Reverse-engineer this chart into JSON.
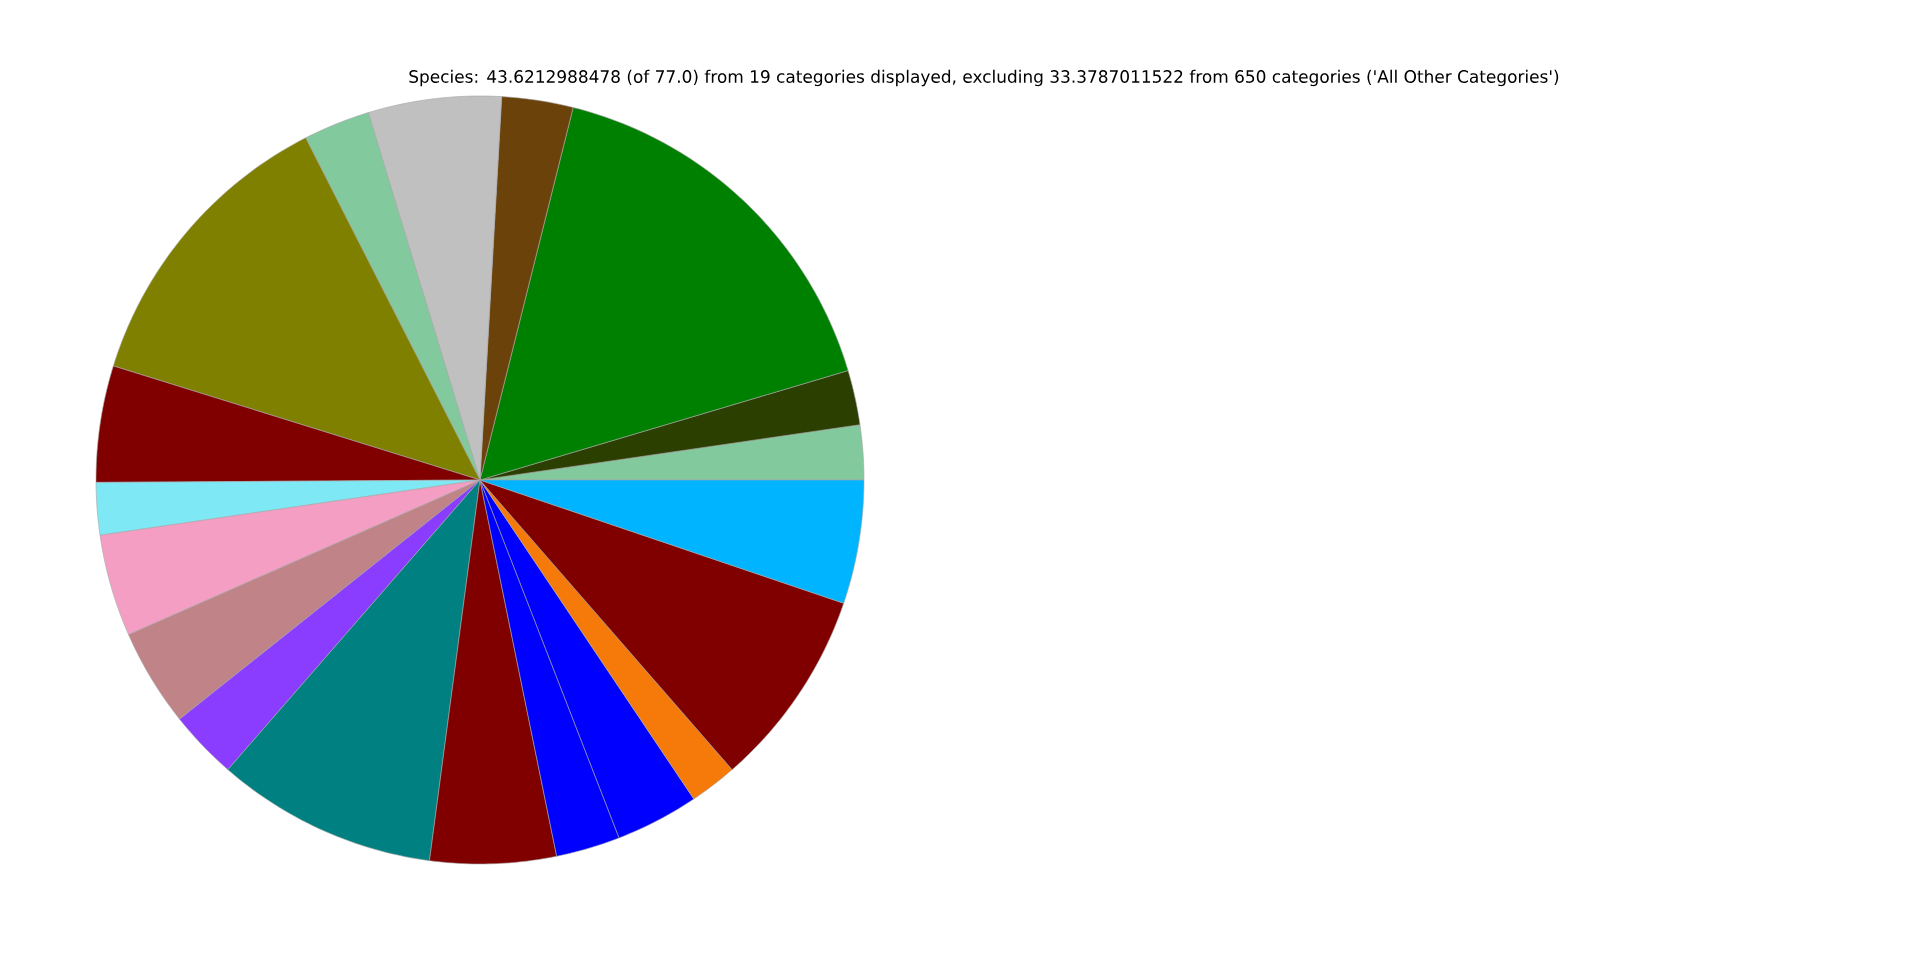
{
  "chart_data": {
    "type": "pie",
    "title": "Species: 43.6212988478 (of 77.0) from 19 categories displayed, excluding 33.3787011522 from 650 categories ('All Other Categories')",
    "categories": [
      null,
      null,
      null,
      null,
      null,
      null,
      null,
      null,
      null,
      null,
      null,
      null,
      null,
      null,
      null,
      null,
      null,
      null,
      null
    ],
    "values": [
      2.3,
      2.3,
      16.5,
      3.0,
      5.6,
      2.8,
      12.7,
      4.9,
      2.2,
      4.3,
      4.1,
      2.9,
      9.3,
      5.3,
      2.7,
      3.5,
      2.0,
      8.4,
      5.2
    ],
    "colors": [
      "#82ca9d",
      "#2b3f00",
      "#008000",
      "#6b420a",
      "#c0c0c0",
      "#82ca9d",
      "#808000",
      "#800000",
      "#7ee8f5",
      "#f49ec4",
      "#c08488",
      "#8b3dff",
      "#008080",
      "#800000",
      "#0000ff",
      "#0000ff",
      "#f57a0a",
      "#800000",
      "#00b4ff"
    ]
  }
}
